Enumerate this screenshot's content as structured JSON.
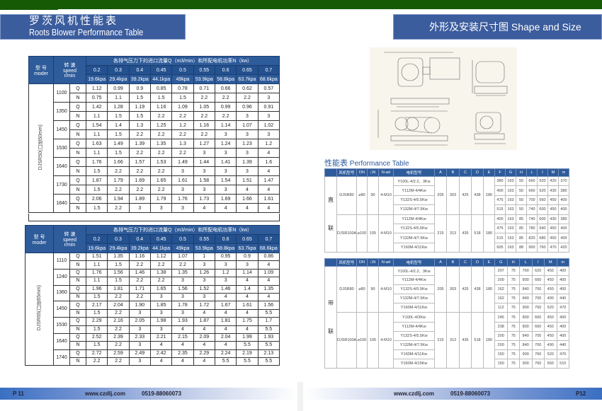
{
  "left_title": {
    "cn": "罗茨风机性能表",
    "en": "Roots Blower Performance Table"
  },
  "right_title": "外形及安装尺寸图 Shape and Size",
  "perf_header": {
    "model": "型 号",
    "model_en": "moder",
    "speed": "转 速",
    "speed_en": "speed",
    "speed_unit": "r/min",
    "group_title": "各排气压力下的进口流量Q（m3/min）和所配电机功率N（kw）",
    "pressures": [
      "0.2",
      "0.3",
      "0.4",
      "0.45",
      "0.5",
      "0.55",
      "0.6",
      "0.65",
      "0.7"
    ],
    "kpa": [
      "19.6kpa",
      "29.4kpa",
      "39.2kpa",
      "44.1kpa",
      "49kpa",
      "53.9kpa",
      "58.8kpa",
      "63.7kpa",
      "68.6kpa"
    ],
    "q_label": "Q",
    "n_label": "N"
  },
  "perf_tables": [
    {
      "model": "DJSR50(口径50mm)",
      "rows": [
        {
          "speed": "1100",
          "Q": [
            "1.12",
            "0.99",
            "0.9",
            "0.85",
            "0.78",
            "0.71",
            "0.66",
            "0.62",
            "0.57"
          ],
          "N": [
            "0.75",
            "1.1",
            "1.5",
            "1.5",
            "1.5",
            "2.2",
            "2.2",
            "2.2",
            "3"
          ]
        },
        {
          "speed": "1350",
          "Q": [
            "1.42",
            "1.28",
            "1.19",
            "1.16",
            "1.09",
            "1.05",
            "0.99",
            "0.96",
            "0.91"
          ],
          "N": [
            "1.1",
            "1.5",
            "1.5",
            "2.2",
            "2.2",
            "2.2",
            "2.2",
            "3",
            "3"
          ]
        },
        {
          "speed": "1450",
          "Q": [
            "1.54",
            "1.4",
            "1.3",
            "1.25",
            "1.2",
            "1.16",
            "1.14",
            "1.07",
            "1.02"
          ],
          "N": [
            "1.1",
            "1.5",
            "2.2",
            "2.2",
            "2.2",
            "2.2",
            "3",
            "3",
            "3"
          ]
        },
        {
          "speed": "1530",
          "Q": [
            "1.63",
            "1.49",
            "1.39",
            "1.35",
            "1.3",
            "1.27",
            "1.24",
            "1.23",
            "1.2"
          ],
          "N": [
            "1.1",
            "1.5",
            "2.2",
            "2.2",
            "2.2",
            "3",
            "3",
            "3",
            "4"
          ]
        },
        {
          "speed": "1640",
          "Q": [
            "1.76",
            "1.66",
            "1.57",
            "1.53",
            "1.49",
            "1.44",
            "1.41",
            "1.39",
            "1.6"
          ],
          "N": [
            "1.5",
            "2.2",
            "2.2",
            "2.2",
            "3",
            "3",
            "3",
            "3",
            "4"
          ]
        },
        {
          "speed": "1730",
          "Q": [
            "1.87",
            "1.79",
            "1.69",
            "1.65",
            "1.61",
            "1.58",
            "1.54",
            "1.51",
            "1.47"
          ],
          "N": [
            "1.5",
            "2.2",
            "2.2",
            "2.2",
            "3",
            "3",
            "3",
            "4",
            "4"
          ]
        },
        {
          "speed": "1840",
          "Q": [
            "2.06",
            "1.94",
            "1.89",
            "1.79",
            "1.76",
            "1.73",
            "1.69",
            "1.66",
            "1.61"
          ],
          "N": [
            "1.5",
            "2.2",
            "3",
            "3",
            "3",
            "4",
            "4",
            "4",
            "4"
          ]
        }
      ]
    },
    {
      "model": "DJSR65(口径65mm)",
      "rows": [
        {
          "speed": "1110",
          "Q": [
            "1.51",
            "1.35",
            "1.16",
            "1.12",
            "1.07",
            "1",
            "0.95",
            "0.9",
            "0.86"
          ],
          "N": [
            "1.1",
            "1.5",
            "2.2",
            "2.2",
            "2.2",
            "3",
            "3",
            "3",
            "4"
          ]
        },
        {
          "speed": "1240",
          "Q": [
            "1.76",
            "1.56",
            "1.46",
            "1.38",
            "1.35",
            "1.26",
            "1.2",
            "1.14",
            "1.09"
          ],
          "N": [
            "1.1",
            "1.5",
            "2.2",
            "2.2",
            "3",
            "3",
            "3",
            "4",
            "4"
          ]
        },
        {
          "speed": "1360",
          "Q": [
            "1.96",
            "1.81",
            "1.71",
            "1.65",
            "1.56",
            "1.52",
            "1.46",
            "1.4",
            "1.35"
          ],
          "N": [
            "1.5",
            "2.2",
            "2.2",
            "3",
            "3",
            "3",
            "4",
            "4",
            "4"
          ]
        },
        {
          "speed": "1450",
          "Q": [
            "2.17",
            "2.04",
            "1.90",
            "1.85",
            "1.78",
            "1.72",
            "1.67",
            "1.61",
            "1.56"
          ],
          "N": [
            "1.5",
            "2.2",
            "3",
            "3",
            "3",
            "4",
            "4",
            "4",
            "5.5"
          ]
        },
        {
          "speed": "1530",
          "Q": [
            "2.29",
            "2.16",
            "2.05",
            "1.98",
            "1.93",
            "1.87",
            "1.81",
            "1.75",
            "1.7"
          ],
          "N": [
            "1.5",
            "2.2",
            "3",
            "3",
            "4",
            "4",
            "4",
            "4",
            "5.5"
          ]
        },
        {
          "speed": "1640",
          "Q": [
            "2.52",
            "2.39",
            "2.33",
            "2.21",
            "2.15",
            "2.09",
            "2.04",
            "1.99",
            "1.93"
          ],
          "N": [
            "1.5",
            "2.2",
            "3",
            "4",
            "4",
            "4",
            "4",
            "5.5",
            "5.5"
          ]
        },
        {
          "speed": "1740",
          "Q": [
            "2.72",
            "2.59",
            "2.49",
            "2.42",
            "2.35",
            "2.29",
            "2.24",
            "2.19",
            "2.13"
          ],
          "N": [
            "2.2",
            "2.2",
            "3",
            "4",
            "4",
            "4",
            "5.5",
            "5.5",
            "5.5"
          ]
        }
      ]
    }
  ],
  "perf_table_title": {
    "cn": "性能表",
    "en": "Performance Table"
  },
  "shape_tables": [
    {
      "side": [
        "直",
        "联"
      ],
      "headers": [
        "风机型号",
        "DN",
        "□N",
        "N-⌀d",
        "电机型号",
        "A",
        "B",
        "C",
        "D",
        "E",
        "F",
        "G",
        "H",
        "L",
        "I",
        "M",
        "m"
      ],
      "groups": [
        {
          "fixed": [
            "DJSR80",
            "⌀80",
            "90",
            "4-M10"
          ],
          "dims": [
            "205",
            "303",
            "425",
            "438",
            "180"
          ],
          "rows": [
            {
              "motor": "Y100L-4/2.2、3Kw",
              "vals": [
                "380",
                "163",
                "50",
                "660",
                "520",
                "420",
                "370"
              ]
            },
            {
              "motor": "Y112M-4/4Kw",
              "vals": [
                "400",
                "163",
                "50",
                "660",
                "520",
                "430",
                "380"
              ]
            },
            {
              "motor": "Y132S-4/5.5Kw",
              "vals": [
                "475",
                "163",
                "50",
                "700",
                "560",
                "450",
                "400"
              ]
            },
            {
              "motor": "Y132M-4/7.5Kw",
              "vals": [
                "515",
                "163",
                "50",
                "740",
                "600",
                "450",
                "400"
              ]
            }
          ]
        },
        {
          "fixed": [
            "DJSR100A",
            "⌀100",
            "105",
            "4-M10"
          ],
          "dims": [
            "215",
            "313",
            "435",
            "518",
            "180"
          ],
          "rows": [
            {
              "motor": "Y112M-4/4Kw",
              "vals": [
                "400",
                "163",
                "85",
                "740",
                "600",
                "430",
                "380"
              ]
            },
            {
              "motor": "Y132S-4/5.5Kw",
              "vals": [
                "475",
                "163",
                "85",
                "780",
                "640",
                "450",
                "400"
              ]
            },
            {
              "motor": "Y132M-4/7.5Kw",
              "vals": [
                "515",
                "163",
                "85",
                "820",
                "680",
                "450",
                "400"
              ]
            },
            {
              "motor": "Y160M-4/11Kw",
              "vals": [
                "605",
                "163",
                "88",
                "900",
                "760",
                "470",
                "420"
              ]
            }
          ]
        }
      ]
    },
    {
      "side": [
        "带",
        "联"
      ],
      "headers": [
        "风机型号",
        "DN",
        "□N",
        "N-⌀d",
        "电机型号",
        "A",
        "B",
        "C",
        "D",
        "E",
        "G",
        "H",
        "L",
        "I",
        "M",
        "m"
      ],
      "groups": [
        {
          "fixed": [
            "DJSR80",
            "⌀80",
            "90",
            "4-M10"
          ],
          "dims": [
            "205",
            "303",
            "425",
            "438",
            "180"
          ],
          "rows": [
            {
              "motor": "Y100L-4/2.2、3Kw",
              "vals": [
                "207",
                "75",
                "760",
                "620",
                "450",
                "400"
              ]
            },
            {
              "motor": "Y112M-4/4Kw",
              "vals": [
                "200",
                "75",
                "800",
                "660",
                "450",
                "400"
              ]
            },
            {
              "motor": "Y132S-4/5.5Kw",
              "vals": [
                "162",
                "75",
                "840",
                "700",
                "450",
                "400"
              ]
            },
            {
              "motor": "Y132M-4/7.5Kw",
              "vals": [
                "162",
                "75",
                "840",
                "700",
                "490",
                "440"
              ]
            },
            {
              "motor": "Y160M-4/11Kw",
              "vals": [
                "112",
                "75",
                "900",
                "760",
                "520",
                "470"
              ]
            }
          ]
        },
        {
          "fixed": [
            "DJSR100A",
            "⌀100",
            "105",
            "4-M10"
          ],
          "dims": [
            "215",
            "313",
            "435",
            "518",
            "180"
          ],
          "rows": [
            {
              "motor": "Y100L-4/3Kw",
              "vals": [
                "245",
                "75",
                "800",
                "660",
                "450",
                "400"
              ]
            },
            {
              "motor": "Y112M-4/4Kw",
              "vals": [
                "238",
                "75",
                "800",
                "660",
                "450",
                "400"
              ]
            },
            {
              "motor": "Y132S-4/5.5Kw",
              "vals": [
                "200",
                "75",
                "840",
                "700",
                "450",
                "400"
              ]
            },
            {
              "motor": "Y132M-4/7.5Kw",
              "vals": [
                "200",
                "75",
                "840",
                "700",
                "490",
                "440"
              ]
            },
            {
              "motor": "Y160M-4/11Kw",
              "vals": [
                "150",
                "75",
                "900",
                "760",
                "520",
                "470"
              ]
            },
            {
              "motor": "Y160M-4/15Kw",
              "vals": [
                "150",
                "75",
                "900",
                "760",
                "560",
                "510"
              ]
            }
          ]
        }
      ]
    }
  ],
  "footer": {
    "left_page": "P 11",
    "right_page": "P12",
    "website": "www.czdlj.com",
    "phone": "0519-88060073"
  },
  "colors": {
    "header_blue": "#3b5c9d",
    "top_green": "#175a05"
  }
}
